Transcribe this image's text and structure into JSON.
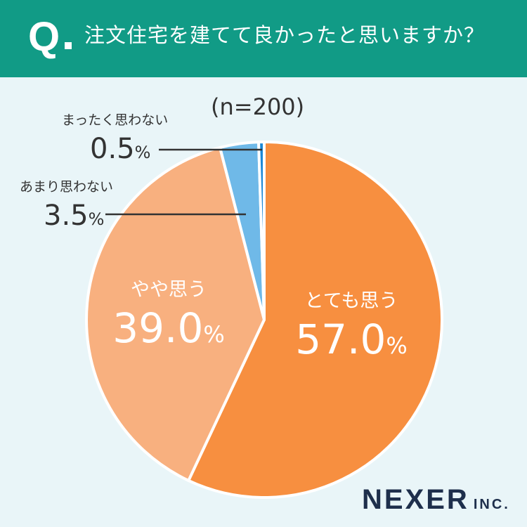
{
  "header": {
    "q_mark": "Q",
    "question": "注文住宅を建てて良かったと思いますか？",
    "bg_color": "#119b86"
  },
  "sample_label": "(n=200)",
  "logo": {
    "name": "NEXER",
    "suffix": "INC."
  },
  "chart_data": {
    "type": "pie",
    "title": "注文住宅を建てて良かったと思いますか？",
    "n": 200,
    "start": "12 o'clock",
    "direction": "clockwise",
    "slices": [
      {
        "label": "とても思う",
        "value": 57.0,
        "display": "57.0",
        "color": "#f78f40",
        "label_style": "inside-white"
      },
      {
        "label": "やや思う",
        "value": 39.0,
        "display": "39.0",
        "color": "#f8b07f",
        "label_style": "inside-white"
      },
      {
        "label": "あまり思わない",
        "value": 3.5,
        "display": "3.5",
        "color": "#6fb9e8",
        "label_style": "outside-dark"
      },
      {
        "label": "まったく思わない",
        "value": 0.5,
        "display": "0.5",
        "color": "#1b88d6",
        "label_style": "outside-dark"
      }
    ],
    "percent_sign": "%"
  }
}
